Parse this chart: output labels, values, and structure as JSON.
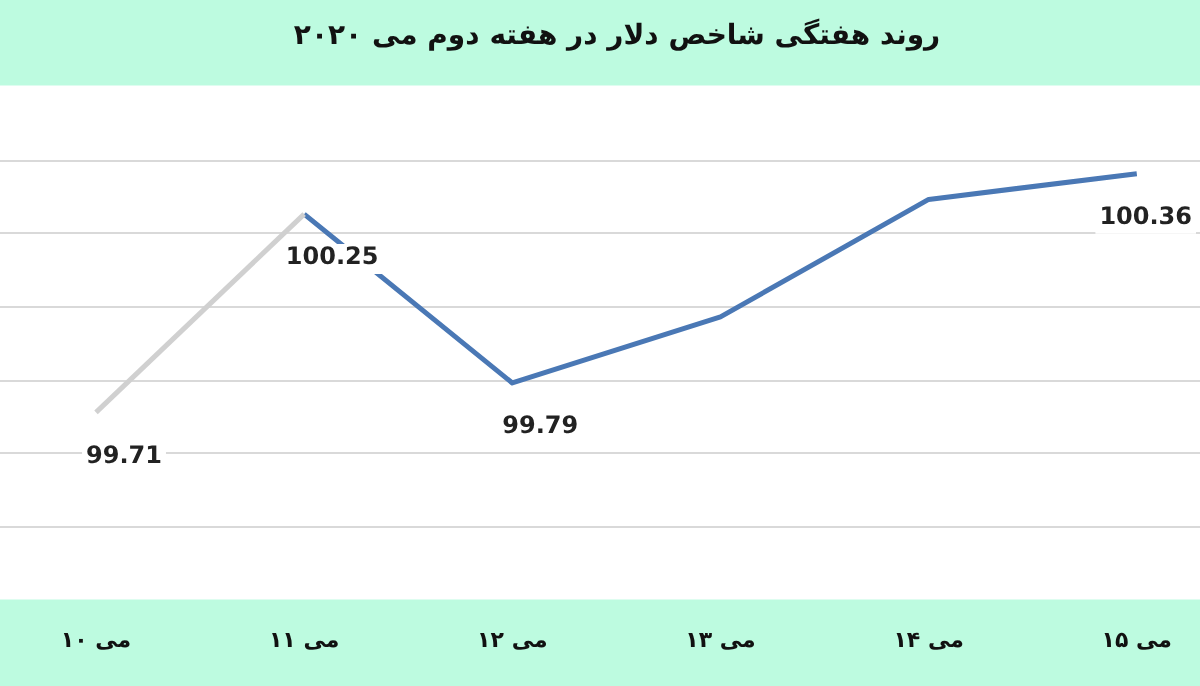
{
  "chart_data": {
    "type": "line",
    "title": "روند هفتگی شاخص دلار در هفته دوم می ۲۰۲۰",
    "categories": [
      "۱۰ می",
      "۱۱ می",
      "۱۲ می",
      "۱۳ می",
      "۱۴ می",
      "۱۵ می"
    ],
    "series": [
      {
        "color": "#d0d0d0",
        "values": [
          99.71,
          100.25,
          null,
          null,
          null,
          null
        ],
        "value_labels": [
          "99.71",
          "100.25",
          null,
          null,
          null,
          null
        ]
      },
      {
        "color": "#4a78b5",
        "values": [
          null,
          100.25,
          99.79,
          99.97,
          100.29,
          100.36
        ],
        "value_labels": [
          null,
          null,
          "99.79",
          null,
          null,
          "100.36"
        ]
      }
    ],
    "ylim": [
      99.2,
      100.6
    ],
    "yticks": [
      {
        "value": 99.4,
        "label": null
      },
      {
        "value": 99.6,
        "label": null
      },
      {
        "value": 99.8,
        "label": null
      },
      {
        "value": 100,
        "label": null
      },
      {
        "value": 100.2,
        "label": null
      },
      {
        "value": 100.4,
        "label": null
      }
    ],
    "grid": "y",
    "legend": false,
    "marker": "none",
    "line_style": "solid",
    "tick_labels": "x"
  }
}
